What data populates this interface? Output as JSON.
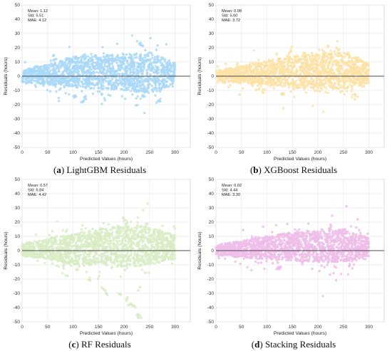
{
  "colors": {
    "panel_a": "#a9d8f8",
    "panel_b": "#fde2a6",
    "panel_c": "#d8ecc4",
    "panel_d": "#efbde9",
    "zero_line": "#4a4a4a",
    "grid": "#eaeaea",
    "axis": "#cfcfcf"
  },
  "chart_data": [
    {
      "type": "scatter",
      "letter": "a",
      "caption_text": " LightGBM Residuals",
      "xlabel": "Predicted Values (hours)",
      "ylabel": "Residuals (hours)",
      "xlim": [
        0,
        330
      ],
      "ylim": [
        -50,
        50
      ],
      "xticks": [
        0,
        50,
        100,
        150,
        200,
        250,
        300
      ],
      "yticks": [
        -50,
        -40,
        -30,
        -20,
        -10,
        0,
        10,
        20,
        30,
        40,
        50
      ],
      "grid": true,
      "stats": [
        "Mean: 1.12",
        "Std: 5.51",
        "MAE: 4.12"
      ],
      "zero_line": 0,
      "cloud": [
        [
          0,
          -4,
          5
        ],
        [
          50,
          -6,
          8
        ],
        [
          100,
          -8,
          14
        ],
        [
          150,
          -9,
          15
        ],
        [
          200,
          -10,
          15
        ],
        [
          250,
          -12,
          17
        ],
        [
          300,
          -6,
          10
        ]
      ],
      "outliers": [
        [
          118,
          -17
        ],
        [
          124,
          -15
        ],
        [
          229,
          24
        ],
        [
          235,
          21
        ],
        [
          270,
          -17
        ],
        [
          103,
          -15
        ],
        [
          240,
          -14
        ]
      ]
    },
    {
      "type": "scatter",
      "letter": "b",
      "caption_text": " XGBoost Residuals",
      "xlabel": "Predicted Values (hours)",
      "ylabel": "Residuals (hours)",
      "xlim": [
        0,
        330
      ],
      "ylim": [
        -50,
        50
      ],
      "xticks": [
        0,
        50,
        100,
        150,
        200,
        250,
        300
      ],
      "yticks": [
        -50,
        -40,
        -30,
        -20,
        -10,
        0,
        10,
        20,
        30,
        40,
        50
      ],
      "grid": true,
      "stats": [
        "Mean: 0.98",
        "Std: 5.00",
        "MAE: 3.72"
      ],
      "zero_line": 0,
      "cloud": [
        [
          0,
          -3,
          4
        ],
        [
          50,
          -5,
          7
        ],
        [
          100,
          -6,
          11
        ],
        [
          150,
          -8,
          14
        ],
        [
          200,
          -9,
          16
        ],
        [
          250,
          -9,
          17
        ],
        [
          300,
          -5,
          9
        ]
      ],
      "outliers": [
        [
          130,
          -13
        ],
        [
          238,
          19
        ],
        [
          270,
          -14
        ],
        [
          275,
          -15
        ],
        [
          210,
          17
        ],
        [
          92,
          -10
        ]
      ]
    },
    {
      "type": "scatter",
      "letter": "c",
      "caption_text": " RF Residuals",
      "xlabel": "Predicted Values (hours)",
      "ylabel": "Residuals (hours)",
      "xlim": [
        0,
        330
      ],
      "ylim": [
        -50,
        50
      ],
      "xticks": [
        0,
        50,
        100,
        150,
        200,
        250,
        300
      ],
      "yticks": [
        -50,
        -40,
        -30,
        -20,
        -10,
        0,
        10,
        20,
        30,
        40,
        50
      ],
      "grid": true,
      "stats": [
        "Mean: 0.57",
        "Std: 6.84",
        "MAE: 4.42"
      ],
      "zero_line": 0,
      "cloud": [
        [
          0,
          -4,
          5
        ],
        [
          50,
          -6,
          8
        ],
        [
          100,
          -10,
          12
        ],
        [
          150,
          -10,
          15
        ],
        [
          200,
          -12,
          18
        ],
        [
          250,
          -10,
          17
        ],
        [
          300,
          -6,
          11
        ]
      ],
      "outliers": [
        [
          198,
          22
        ],
        [
          205,
          20
        ],
        [
          130,
          -20
        ],
        [
          160,
          -27
        ],
        [
          190,
          -30
        ],
        [
          205,
          -34
        ],
        [
          220,
          -40
        ],
        [
          225,
          -46
        ],
        [
          230,
          -47
        ],
        [
          168,
          -30
        ],
        [
          212,
          -38
        ]
      ]
    },
    {
      "type": "scatter",
      "letter": "d",
      "caption_text": " Stacking Residuals",
      "xlabel": "Predicted Values (hours)",
      "ylabel": "Residuals (hours)",
      "xlim": [
        0,
        330
      ],
      "ylim": [
        -50,
        50
      ],
      "xticks": [
        0,
        50,
        100,
        150,
        200,
        250,
        300
      ],
      "yticks": [
        -50,
        -40,
        -30,
        -20,
        -10,
        0,
        10,
        20,
        30,
        40,
        50
      ],
      "grid": true,
      "stats": [
        "Mean: 0.92",
        "Std: 4.44",
        "MAE: 3.30"
      ],
      "zero_line": 0,
      "cloud": [
        [
          0,
          -3,
          4
        ],
        [
          50,
          -5,
          7
        ],
        [
          100,
          -6,
          10
        ],
        [
          150,
          -7,
          13
        ],
        [
          200,
          -8,
          14
        ],
        [
          250,
          -8,
          15
        ],
        [
          300,
          -4,
          9
        ]
      ],
      "outliers": [
        [
          120,
          -13
        ],
        [
          126,
          -12
        ],
        [
          250,
          14
        ],
        [
          265,
          -11
        ],
        [
          225,
          16
        ]
      ]
    }
  ]
}
